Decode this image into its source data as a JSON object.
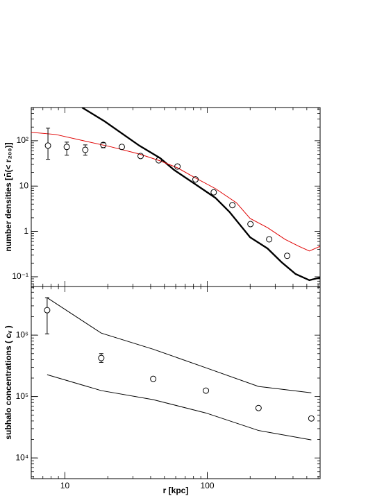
{
  "chart_data": [
    {
      "type": "line",
      "ylabel": "number densities  [n̄(< r₂₀₀)]",
      "log_x": true,
      "log_y": true,
      "xlim": [
        5.8,
        620
      ],
      "ylim": [
        0.061,
        540
      ],
      "yticks": [
        {
          "value": 0.1,
          "label": "10⁻¹"
        },
        1,
        10,
        {
          "value": 100,
          "label": "10²"
        }
      ],
      "series": [
        {
          "style": "thick-line",
          "color": "#000000",
          "x": [
            13.2,
            19.0,
            33.3,
            46.6,
            58.3,
            81.6,
            114,
            143,
            200,
            265,
            332,
            417,
            521,
            620
          ],
          "values": [
            540,
            268,
            78,
            41.4,
            22.8,
            11.2,
            5.5,
            2.7,
            0.74,
            0.42,
            0.21,
            0.115,
            0.084,
            0.096
          ]
        },
        {
          "style": "line",
          "color": "#e00000",
          "x": [
            5.8,
            8.66,
            13.5,
            21.2,
            33.3,
            46.6,
            61.7,
            81.6,
            114,
            160,
            200,
            265,
            351,
            440,
            521,
            620
          ],
          "values": [
            153,
            137,
            100,
            73,
            51,
            36,
            25.3,
            15.4,
            8.8,
            4.3,
            1.93,
            1.21,
            0.67,
            0.47,
            0.37,
            0.47
          ]
        },
        {
          "style": "points",
          "color": "#000000",
          "x": [
            7.6,
            10.3,
            13.9,
            18.6,
            25.1,
            34,
            45.6,
            61.7,
            82.6,
            111,
            150,
            201,
            272,
            364
          ],
          "values": [
            78,
            73,
            63,
            81,
            73,
            46,
            37,
            27,
            14,
            7.3,
            3.8,
            1.45,
            0.67,
            0.29
          ],
          "err_high": [
            189,
            93,
            81,
            90,
            null,
            null,
            null,
            null,
            null,
            null,
            null,
            null,
            null,
            null
          ],
          "err_low": [
            39,
            48,
            48,
            70,
            null,
            null,
            null,
            null,
            null,
            null,
            null,
            null,
            null,
            null
          ]
        }
      ]
    },
    {
      "type": "line",
      "ylabel": "subhalo concentrations  ( cᵥ )",
      "xlabel": "r [kpc]",
      "log_x": true,
      "log_y": true,
      "xlim": [
        5.8,
        620
      ],
      "ylim": [
        4600,
        6200000
      ],
      "xticks": [
        10,
        100
      ],
      "yticks": [
        {
          "value": 10000,
          "label": "10⁴"
        },
        {
          "value": 100000,
          "label": "10⁵"
        },
        {
          "value": 1000000,
          "label": "10⁶"
        }
      ],
      "series": [
        {
          "style": "line",
          "color": "#000000",
          "x": [
            7.5,
            18.0,
            41.7,
            97.8,
            229,
            538
          ],
          "values": [
            4070000,
            1080000,
            590000,
            294000,
            146000,
            115000
          ]
        },
        {
          "style": "line",
          "color": "#000000",
          "x": [
            7.5,
            18.0,
            41.7,
            97.8,
            229,
            538
          ],
          "values": [
            227000,
            125000,
            89000,
            54000,
            28000,
            19700
          ]
        },
        {
          "style": "points",
          "color": "#000000",
          "x": [
            7.5,
            18.0,
            41.7,
            97.8,
            229,
            538
          ],
          "values": [
            2550000,
            424000,
            194000,
            125000,
            65000,
            44000
          ],
          "err_high": [
            4070000,
            500000,
            null,
            null,
            null,
            null
          ],
          "err_low": [
            1050000,
            360000,
            null,
            null,
            null,
            null
          ]
        }
      ]
    }
  ]
}
